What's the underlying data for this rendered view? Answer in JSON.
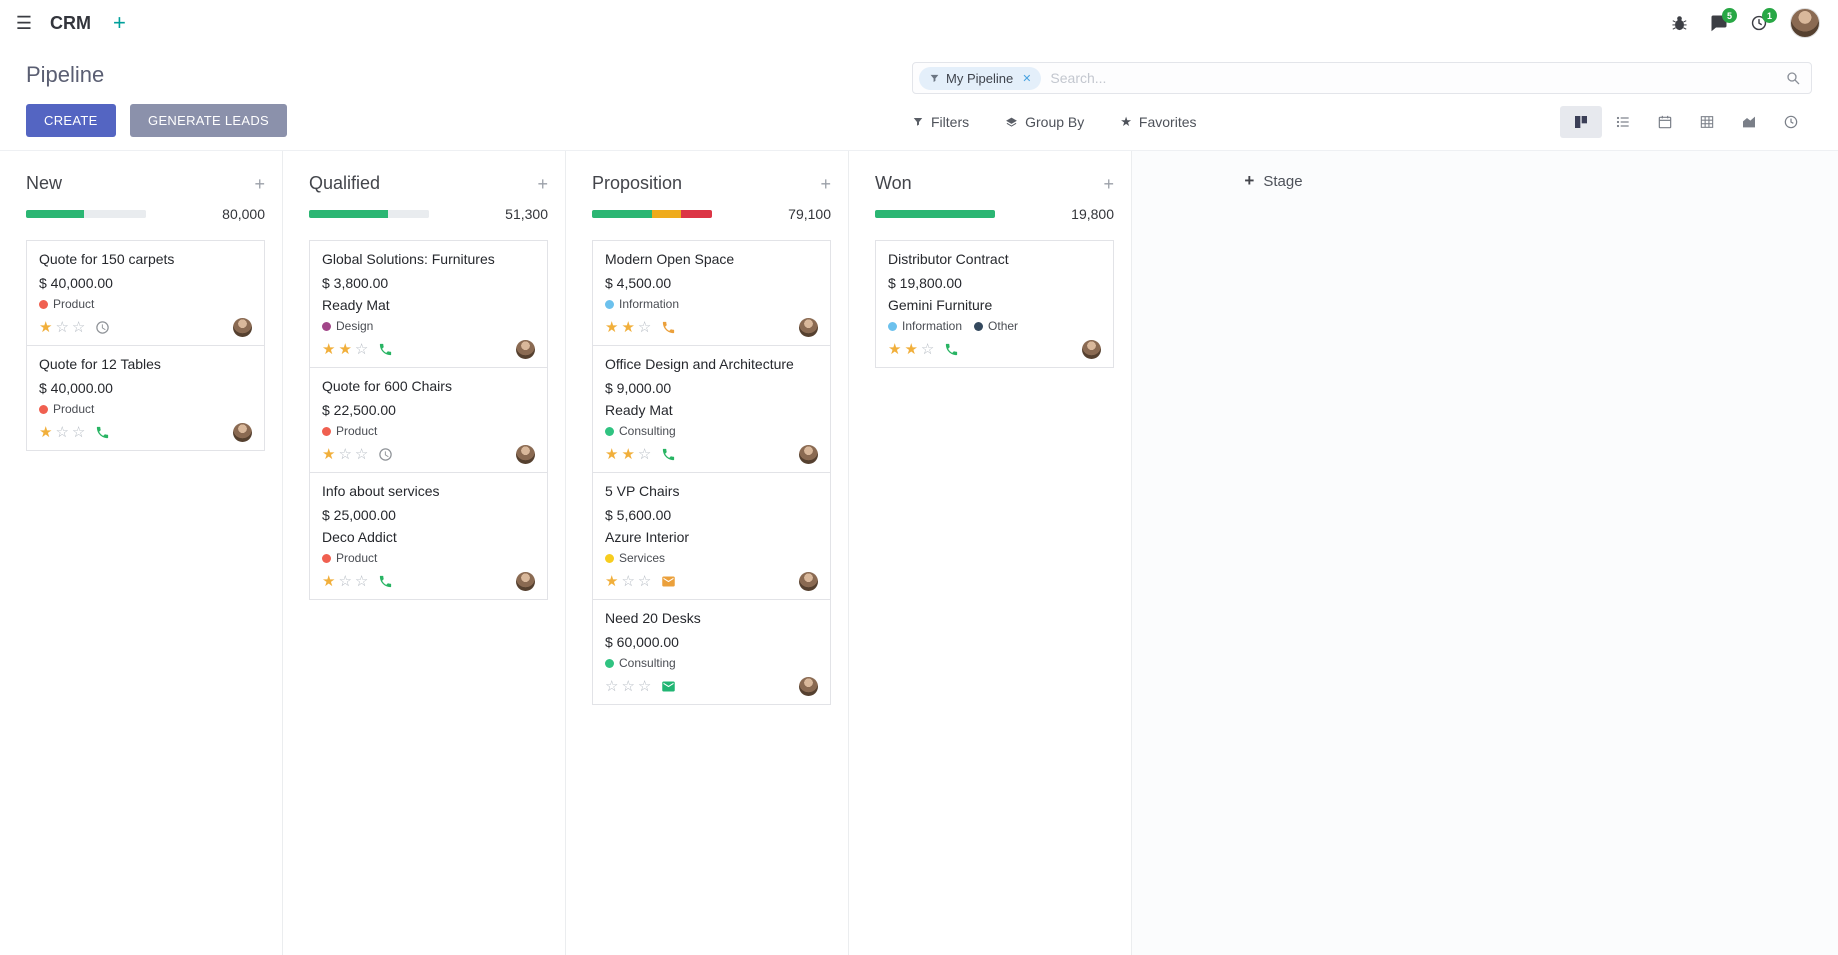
{
  "navbar": {
    "app_name": "CRM",
    "plus": "+",
    "systray": {
      "messages_badge": "5",
      "activities_badge": "1"
    }
  },
  "control_panel": {
    "title": "Pipeline",
    "buttons": {
      "create": "CREATE",
      "generate_leads": "GENERATE LEADS"
    },
    "search": {
      "facet_label": "My Pipeline",
      "remove_label": "✕",
      "placeholder": "Search..."
    },
    "filters_label": "Filters",
    "group_by_label": "Group By",
    "favorites_label": "Favorites",
    "active_view": "kanban"
  },
  "theme": {
    "primary": "#5465c2",
    "secondary_button": "#8b91ab",
    "navbar_plus": "#00a09b",
    "badge": "#28a745",
    "star_filled": "#f1af3b",
    "progress_green": "#2bb673",
    "progress_yellow": "#efab1c",
    "progress_red": "#dc3545",
    "progress_muted": "#e9ecef"
  },
  "board": {
    "add_stage_label": "Stage",
    "add_card_label": "+",
    "stages": [
      {
        "name": "New",
        "counter": "80,000",
        "progress": [
          {
            "state": "green",
            "color": "#2bb673",
            "pct": 48
          },
          {
            "state": "muted",
            "color": "#e9ecef",
            "pct": 52
          }
        ],
        "cards": [
          {
            "title": "Quote for 150 carpets",
            "amount": "$ 40,000.00",
            "tags": [
              {
                "label": "Product",
                "color": "#f06050"
              }
            ],
            "stars": 1,
            "activity": {
              "icon": "clock",
              "color": "#8f9398"
            }
          },
          {
            "title": "Quote for 12 Tables",
            "amount": "$ 40,000.00",
            "tags": [
              {
                "label": "Product",
                "color": "#f06050"
              }
            ],
            "stars": 1,
            "activity": {
              "icon": "phone",
              "color": "#28b463"
            }
          }
        ]
      },
      {
        "name": "Qualified",
        "counter": "51,300",
        "progress": [
          {
            "state": "green",
            "color": "#2bb673",
            "pct": 66
          },
          {
            "state": "muted",
            "color": "#e9ecef",
            "pct": 34
          }
        ],
        "cards": [
          {
            "title": "Global Solutions: Furnitures",
            "amount": "$ 3,800.00",
            "partner": "Ready Mat",
            "tags": [
              {
                "label": "Design",
                "color": "#a24689"
              }
            ],
            "stars": 2,
            "activity": {
              "icon": "phone",
              "color": "#28b463"
            }
          },
          {
            "title": "Quote for 600 Chairs",
            "amount": "$ 22,500.00",
            "tags": [
              {
                "label": "Product",
                "color": "#f06050"
              }
            ],
            "stars": 1,
            "activity": {
              "icon": "clock",
              "color": "#8f9398"
            }
          },
          {
            "title": "Info about services",
            "amount": "$ 25,000.00",
            "partner": "Deco Addict",
            "tags": [
              {
                "label": "Product",
                "color": "#f06050"
              }
            ],
            "stars": 1,
            "activity": {
              "icon": "phone",
              "color": "#28b463"
            }
          }
        ]
      },
      {
        "name": "Proposition",
        "counter": "79,100",
        "progress": [
          {
            "state": "green",
            "color": "#2bb673",
            "pct": 50
          },
          {
            "state": "yellow",
            "color": "#efab1c",
            "pct": 24
          },
          {
            "state": "red",
            "color": "#dc3545",
            "pct": 26
          }
        ],
        "cards": [
          {
            "title": "Modern Open Space",
            "amount": "$ 4,500.00",
            "tags": [
              {
                "label": "Information",
                "color": "#6cc1ed"
              }
            ],
            "stars": 2,
            "activity": {
              "icon": "phone",
              "color": "#eba03b"
            }
          },
          {
            "title": "Office Design and Architecture",
            "amount": "$ 9,000.00",
            "partner": "Ready Mat",
            "tags": [
              {
                "label": "Consulting",
                "color": "#30c381"
              }
            ],
            "stars": 2,
            "activity": {
              "icon": "phone",
              "color": "#28b463"
            }
          },
          {
            "title": "5 VP Chairs",
            "amount": "$ 5,600.00",
            "partner": "Azure Interior",
            "tags": [
              {
                "label": "Services",
                "color": "#f7cd1f"
              }
            ],
            "stars": 1,
            "activity": {
              "icon": "envelope",
              "color": "#eba03b"
            }
          },
          {
            "title": "Need 20 Desks",
            "amount": "$ 60,000.00",
            "tags": [
              {
                "label": "Consulting",
                "color": "#30c381"
              }
            ],
            "stars": 0,
            "activity": {
              "icon": "envelope",
              "color": "#21b573"
            }
          }
        ]
      },
      {
        "name": "Won",
        "counter": "19,800",
        "progress": [
          {
            "state": "green",
            "color": "#2bb673",
            "pct": 100
          }
        ],
        "cards": [
          {
            "title": "Distributor Contract",
            "amount": "$ 19,800.00",
            "partner": "Gemini Furniture",
            "tags": [
              {
                "label": "Information",
                "color": "#6cc1ed"
              },
              {
                "label": "Other",
                "color": "#34495e"
              }
            ],
            "stars": 2,
            "activity": {
              "icon": "phone",
              "color": "#28b463"
            }
          }
        ]
      }
    ]
  }
}
